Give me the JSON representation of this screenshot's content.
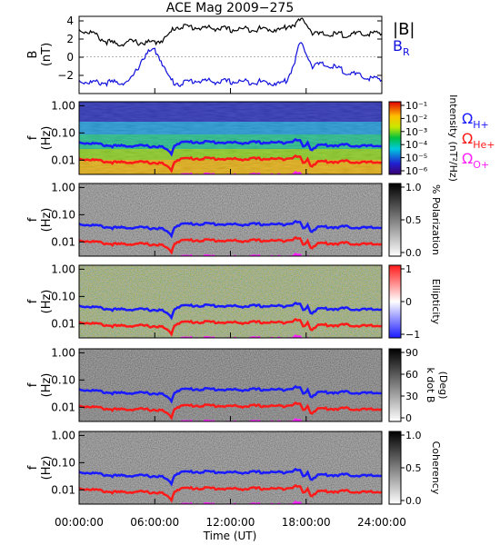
{
  "title": "ACE Mag 2009−275",
  "colors": {
    "B_total": "#000000",
    "B_R": "#1010dd",
    "omega_H": "#1a1aff",
    "omega_He": "#ff1a1a",
    "omega_O": "#ff20ff"
  },
  "chart_data": [
    {
      "type": "line",
      "panel": "magnetic-field",
      "ylabel_line1": "B",
      "ylabel_line2": "(nT)",
      "ylim": [
        -4,
        4.5
      ],
      "yticks": [
        {
          "label": "4",
          "v": 4
        },
        {
          "label": "2",
          "v": 2
        },
        {
          "label": "0",
          "v": 0
        },
        {
          "label": "−2",
          "v": -2
        }
      ],
      "legend_B_main": "|B|",
      "legend_BR_main": "B",
      "legend_BR_sub": "R",
      "series": [
        {
          "name": "|B|",
          "t": [
            0,
            1,
            2,
            3,
            4,
            5,
            6,
            6.5,
            7,
            7.5,
            8,
            9,
            10,
            11,
            12,
            13,
            14,
            15,
            16,
            16.5,
            17,
            17.5,
            18,
            18.5,
            19,
            20,
            21,
            22,
            23,
            24
          ],
          "v": [
            3.0,
            2.7,
            1.8,
            1.4,
            1.7,
            1.6,
            1.6,
            1.9,
            2.2,
            3.2,
            3.4,
            3.3,
            3.2,
            3.2,
            3.0,
            3.1,
            3.1,
            3.1,
            3.0,
            3.4,
            3.6,
            4.0,
            3.9,
            2.7,
            2.5,
            2.5,
            2.5,
            2.5,
            2.6,
            2.6
          ]
        },
        {
          "name": "B_R",
          "t": [
            0,
            1,
            2,
            3,
            4,
            4.5,
            5,
            5.5,
            6,
            6.5,
            7,
            7.5,
            8,
            9,
            10,
            11,
            12,
            13,
            14,
            15,
            16,
            16.5,
            17,
            17.5,
            18,
            18.5,
            19,
            20,
            21,
            22,
            23,
            24
          ],
          "v": [
            -2.6,
            -2.8,
            -2.8,
            -2.8,
            -2.7,
            -1.6,
            -0.2,
            0.5,
            0.8,
            -0.3,
            -2.0,
            -2.8,
            -2.9,
            -2.6,
            -2.6,
            -2.7,
            -2.7,
            -2.7,
            -2.7,
            -2.8,
            -2.9,
            -2.5,
            -0.8,
            1.5,
            0.6,
            -1.0,
            -0.8,
            -1.0,
            -1.5,
            -2.0,
            -2.3,
            -2.5
          ]
        }
      ]
    },
    {
      "type": "heatmap",
      "panel": "intensity",
      "ylabel_line1": "f",
      "ylabel_line2": "(Hz)",
      "colorbar_label": "Intensity (nT²/Hz)",
      "colorbar_ticks": [
        "10⁻¹",
        "10⁻²",
        "10⁻³",
        "10⁻⁴",
        "10⁻⁵",
        "10⁻⁶"
      ],
      "legend": [
        {
          "main": "Ω",
          "sub": "H+",
          "color": "#1a1aff"
        },
        {
          "main": "Ω",
          "sub": "He+",
          "color": "#ff1a1a"
        },
        {
          "main": "Ω",
          "sub": "O+",
          "color": "#ff20ff"
        }
      ]
    },
    {
      "type": "heatmap",
      "panel": "polarization",
      "ylabel_line1": "f",
      "ylabel_line2": "(Hz)",
      "colorbar_label": "% Polarization",
      "colorbar_ticks": [
        "1.0",
        "0.5",
        "0.0"
      ]
    },
    {
      "type": "heatmap",
      "panel": "ellipticity",
      "ylabel_line1": "f",
      "ylabel_line2": "(Hz)",
      "colorbar_label": "Ellipticity",
      "colorbar_ticks": [
        "1",
        "0",
        "−1"
      ]
    },
    {
      "type": "heatmap",
      "panel": "kdotB",
      "ylabel_line1": "f",
      "ylabel_line2": "(Hz)",
      "colorbar_label_line1": "k dot B",
      "colorbar_label_line2": "(Deg)",
      "colorbar_ticks": [
        "90",
        "60",
        "30",
        "0"
      ]
    },
    {
      "type": "heatmap",
      "panel": "coherency",
      "ylabel_line1": "f",
      "ylabel_line2": "(Hz)",
      "colorbar_label": "Coherency",
      "colorbar_ticks": [
        "1.0",
        "0.5",
        "0.0"
      ]
    }
  ],
  "frequency_axis": {
    "ticks": [
      {
        "label": "1.00",
        "f": 1.0
      },
      {
        "label": "0.10",
        "f": 0.1
      },
      {
        "label": "0.01",
        "f": 0.01
      }
    ],
    "range": [
      0.003,
      1.4
    ]
  },
  "cyclotron_lines": {
    "t": [
      0,
      1,
      2,
      3,
      4,
      5,
      6,
      6.5,
      7,
      7.3,
      7.6,
      8,
      9,
      10,
      11,
      12,
      13,
      14,
      15,
      16,
      16.5,
      17,
      17.5,
      17.8,
      18.1,
      18.4,
      19,
      20,
      21,
      22,
      23,
      24
    ],
    "H_plus": [
      0.048,
      0.044,
      0.038,
      0.034,
      0.036,
      0.035,
      0.034,
      0.033,
      0.024,
      0.018,
      0.04,
      0.047,
      0.049,
      0.049,
      0.048,
      0.046,
      0.046,
      0.047,
      0.047,
      0.046,
      0.051,
      0.055,
      0.056,
      0.03,
      0.05,
      0.026,
      0.038,
      0.037,
      0.038,
      0.036,
      0.034,
      0.037
    ],
    "He_plus": [
      0.012,
      0.011,
      0.0095,
      0.0085,
      0.009,
      0.0088,
      0.0085,
      0.0082,
      0.006,
      0.0045,
      0.01,
      0.0118,
      0.0122,
      0.0122,
      0.012,
      0.0115,
      0.0115,
      0.0118,
      0.0118,
      0.0115,
      0.0128,
      0.0138,
      0.014,
      0.0075,
      0.0125,
      0.0065,
      0.0095,
      0.0092,
      0.0095,
      0.009,
      0.0085,
      0.0092
    ],
    "O_plus": [
      0.003,
      0.0028,
      0.0024,
      0.0021,
      0.0022,
      0.0022,
      0.0021,
      0.0021,
      0.0015,
      0.0011,
      0.0025,
      0.003,
      0.0031,
      0.0031,
      0.003,
      0.0029,
      0.0029,
      0.003,
      0.003,
      0.0029,
      0.0032,
      0.0034,
      0.0035,
      0.0019,
      0.0031,
      0.0016,
      0.0024,
      0.0023,
      0.0024,
      0.0023,
      0.0021,
      0.0023
    ]
  },
  "time_axis": {
    "label": "Time (UT)",
    "ticks": [
      {
        "label": "00:00:00",
        "h": 0
      },
      {
        "label": "06:00:00",
        "h": 6
      },
      {
        "label": "12:00:00",
        "h": 12
      },
      {
        "label": "18:00:00",
        "h": 18
      },
      {
        "label": "24:00:00",
        "h": 24
      }
    ],
    "range": [
      0,
      24
    ]
  }
}
